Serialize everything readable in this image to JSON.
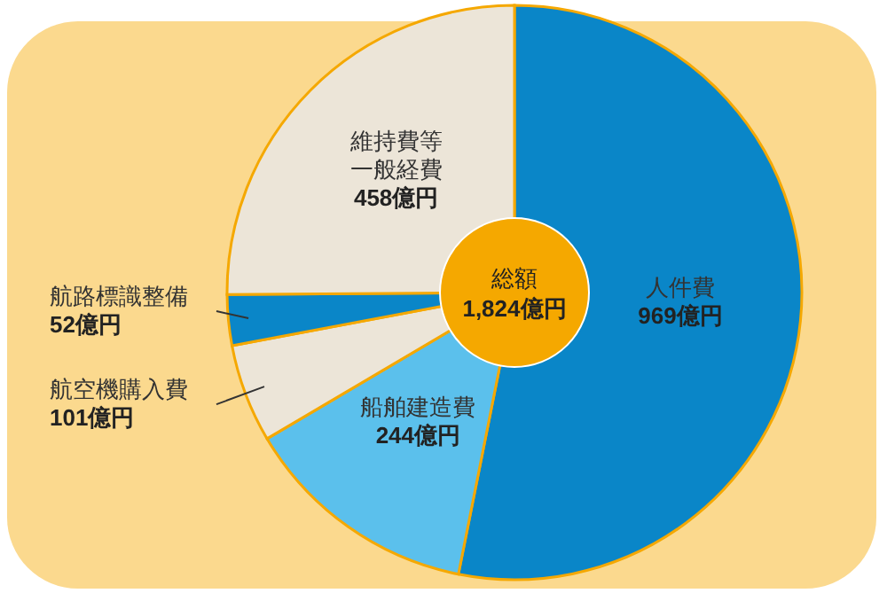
{
  "chart_data": {
    "type": "donut",
    "categories": [
      "人件費",
      "船舶建造費",
      "航空機購入費",
      "航路標識整備",
      "維持費等一般経費"
    ],
    "values": [
      969,
      244,
      101,
      52,
      458
    ],
    "colors": [
      "#0a86c8",
      "#5bc0ec",
      "#ece5d8",
      "#0a86c8",
      "#ece5d8"
    ],
    "value_labels": [
      "969億円",
      "244億円",
      "101億円",
      "52億円",
      "458億円"
    ],
    "annotations": [
      "総額",
      "1,824億円"
    ]
  }
}
